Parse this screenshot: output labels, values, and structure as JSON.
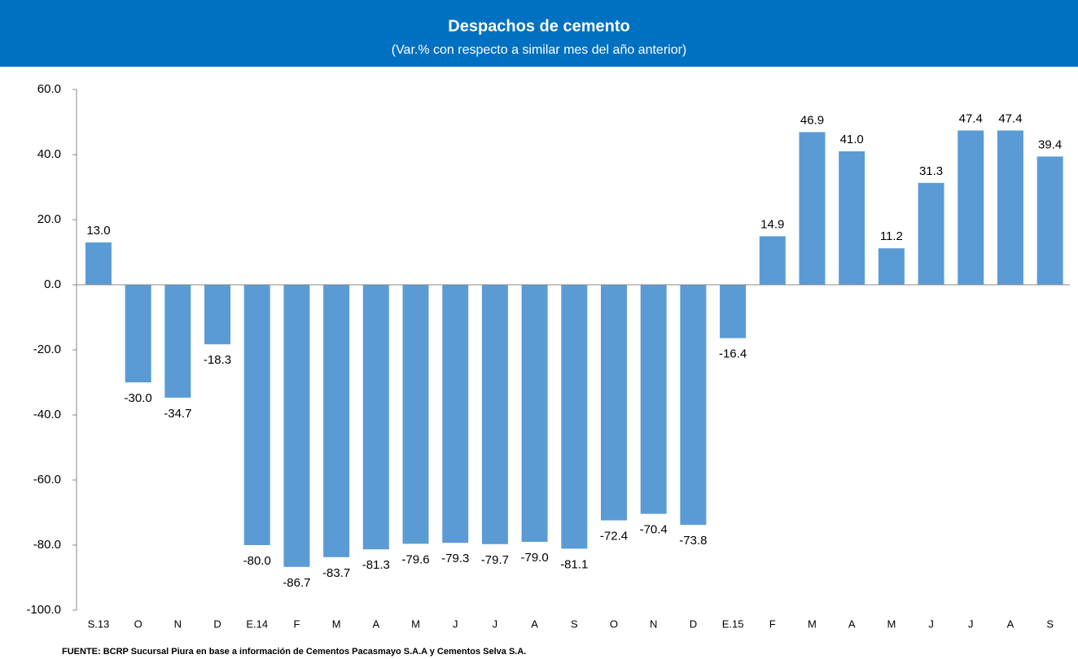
{
  "chart_data": {
    "type": "bar",
    "title": "Despachos de cemento",
    "subtitle": "(Var.% con respecto a similar mes del año anterior)",
    "categories": [
      "S.13",
      "O",
      "N",
      "D",
      "E.14",
      "F",
      "M",
      "A",
      "M",
      "J",
      "J",
      "A",
      "S",
      "O",
      "N",
      "D",
      "E.15",
      "F",
      "M",
      "A",
      "M",
      "J",
      "J",
      "A",
      "S"
    ],
    "values": [
      13.0,
      -30.0,
      -34.7,
      -18.3,
      -80.0,
      -86.7,
      -83.7,
      -81.3,
      -79.6,
      -79.3,
      -79.7,
      -79.0,
      -81.1,
      -72.4,
      -70.4,
      -73.8,
      -16.4,
      14.9,
      46.9,
      41.0,
      11.2,
      31.3,
      47.4,
      47.4,
      39.4
    ],
    "value_labels": [
      "13.0",
      "-30.0",
      "-34.7",
      "-18.3",
      "-80.0",
      "-86.7",
      "-83.7",
      "-81.3",
      "-79.6",
      "-79.3",
      "-79.7",
      "-79.0",
      "-81.1",
      "-72.4",
      "-70.4",
      "-73.8",
      "-16.4",
      "14.9",
      "46.9",
      "41.0",
      "11.2",
      "31.3",
      "47.4",
      "47.4",
      "39.4"
    ],
    "color": "#5b9bd5",
    "ylim": [
      -100,
      60
    ],
    "yticks": [
      {
        "value": -100,
        "label": "-100.0"
      },
      {
        "value": -80,
        "label": "-80.0"
      },
      {
        "value": -60,
        "label": "-60.0"
      },
      {
        "value": -40,
        "label": "-40.0"
      },
      {
        "value": -20,
        "label": "-20.0"
      },
      {
        "value": 0,
        "label": "0.0"
      },
      {
        "value": 20,
        "label": "20.0"
      },
      {
        "value": 40,
        "label": "40.0"
      },
      {
        "value": 60,
        "label": "60.0"
      }
    ],
    "source": "FUENTE:  BCRP Sucursal Piura en base a información de Cementos Pacasmayo S.A.A y Cementos Selva S.A."
  }
}
